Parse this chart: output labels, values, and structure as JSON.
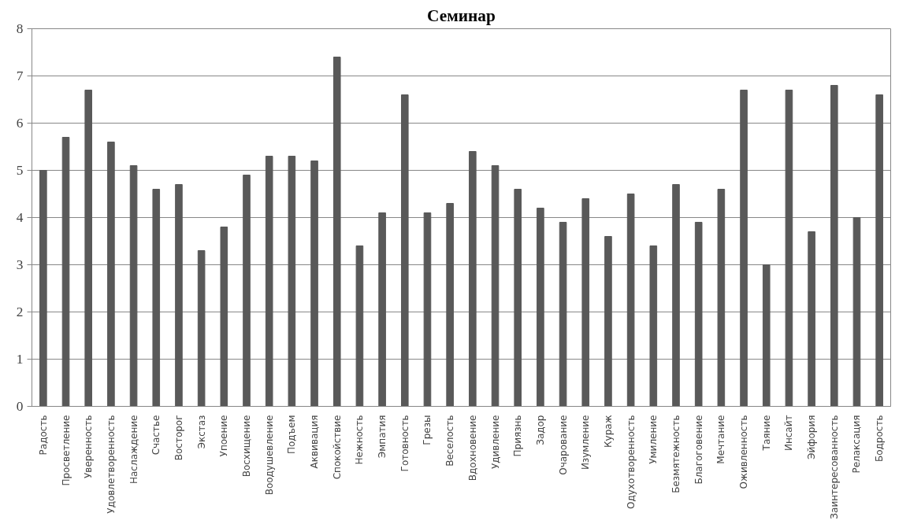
{
  "chart_data": {
    "type": "bar",
    "title": "Семинар",
    "categories": [
      "Радость",
      "Просветление",
      "Уверенность",
      "Удовлетворенность",
      "Наслаждение",
      "Счастье",
      "Восторог",
      "Экстаз",
      "Упоение",
      "Восхищение",
      "Воодушевление",
      "Подъем",
      "Аквивация",
      "Спокойствие",
      "Нежность",
      "Эмпатия",
      "Готовность",
      "Грезы",
      "Веселость",
      "Вдохновение",
      "Удивление",
      "Приязнь",
      "Задор",
      "Очарование",
      "Изумление",
      "Кураж",
      "Одухотворенность",
      "Умиление",
      "Безмятежность",
      "Благоговение",
      "Мечтание",
      "Оживленность",
      "Таяние",
      "Инсайт",
      "Эйфория",
      "Заинтересованность",
      "Релаксация",
      "Бодрость"
    ],
    "values": [
      5.0,
      5.7,
      6.7,
      5.6,
      5.1,
      4.6,
      4.7,
      3.3,
      3.8,
      4.9,
      5.3,
      5.3,
      5.2,
      7.4,
      3.4,
      4.1,
      6.6,
      4.1,
      4.3,
      5.4,
      5.1,
      4.6,
      4.2,
      3.9,
      4.4,
      3.6,
      4.5,
      3.4,
      4.7,
      3.9,
      4.6,
      6.7,
      3.0,
      6.7,
      3.7,
      6.8,
      4.0,
      6.6
    ],
    "color": "#595959",
    "ylim": [
      0,
      8
    ],
    "yticks": [
      0,
      1,
      2,
      3,
      4,
      5,
      6,
      7,
      8
    ],
    "grid": "y"
  }
}
